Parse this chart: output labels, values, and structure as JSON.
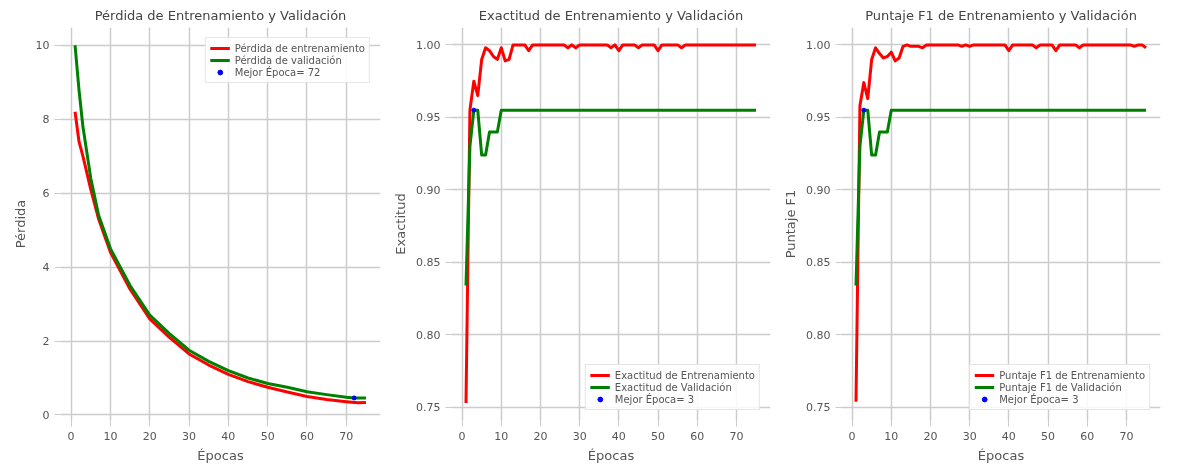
{
  "chart_data": [
    {
      "type": "line",
      "title": "Pérdida de Entrenamiento y Validación",
      "xlabel": "Épocas",
      "ylabel": "Pérdida",
      "xlim": [
        -2.7,
        78.7
      ],
      "ylim": [
        -0.15,
        10.48
      ],
      "xticks": [
        0,
        10,
        20,
        30,
        40,
        50,
        60,
        70
      ],
      "yticks": [
        0,
        2,
        4,
        6,
        8,
        10
      ],
      "grid": true,
      "legend": "top right",
      "line_style": "solid",
      "series": [
        {
          "name": "Pérdida de entrenamiento",
          "color": "#ff0000",
          "x": [
            1,
            2,
            3,
            5,
            7,
            10,
            15,
            20,
            25,
            30,
            35,
            40,
            45,
            50,
            55,
            60,
            65,
            70,
            73,
            75
          ],
          "values": [
            8.2,
            7.4,
            7.0,
            6.1,
            5.3,
            4.4,
            3.4,
            2.6,
            2.1,
            1.65,
            1.35,
            1.1,
            0.9,
            0.75,
            0.62,
            0.5,
            0.42,
            0.36,
            0.33,
            0.34
          ]
        },
        {
          "name": "Pérdida de validación",
          "color": "#008000",
          "x": [
            1,
            2,
            3,
            5,
            7,
            10,
            15,
            20,
            25,
            30,
            35,
            40,
            45,
            50,
            55,
            60,
            65,
            70,
            72,
            75
          ],
          "values": [
            10.0,
            8.8,
            7.8,
            6.4,
            5.4,
            4.5,
            3.5,
            2.7,
            2.2,
            1.75,
            1.45,
            1.2,
            1.0,
            0.85,
            0.75,
            0.63,
            0.55,
            0.48,
            0.46,
            0.46
          ]
        },
        {
          "name": "Mejor Época= 72",
          "type": "scatter",
          "marker": "circle",
          "color": "#0000ff",
          "x": [
            72
          ],
          "values": [
            0.46
          ]
        }
      ]
    },
    {
      "type": "line",
      "title": "Exactitud de Entrenamiento y Validación",
      "xlabel": "Épocas",
      "ylabel": "Exactitud",
      "xlim": [
        -2.7,
        78.7
      ],
      "ylim": [
        0.741,
        1.012
      ],
      "xticks": [
        0,
        10,
        20,
        30,
        40,
        50,
        60,
        70
      ],
      "yticks": [
        {
          "value": 0.75,
          "label": "0.75"
        },
        {
          "value": 0.8,
          "label": "0.80"
        },
        {
          "value": 0.85,
          "label": "0.85"
        },
        {
          "value": 0.9,
          "label": "0.90"
        },
        {
          "value": 0.95,
          "label": "0.95"
        },
        {
          "value": 1.0,
          "label": "1.00"
        }
      ],
      "grid": true,
      "legend": "bottom right",
      "line_style": "solid",
      "series": [
        {
          "name": "Exactitud de Entrenamiento",
          "color": "#ff0000",
          "x": [
            1,
            2,
            3,
            4,
            5,
            6,
            7,
            8,
            9,
            10,
            11,
            12,
            13,
            16,
            17,
            18,
            26,
            27,
            28,
            29,
            30,
            37,
            38,
            39,
            40,
            41,
            44,
            45,
            46,
            49,
            50,
            51,
            55,
            56,
            57,
            75
          ],
          "values": [
            0.753,
            0.955,
            0.975,
            0.965,
            0.99,
            0.998,
            0.996,
            0.992,
            0.99,
            0.998,
            0.989,
            0.99,
            1.0,
            1.0,
            0.996,
            1.0,
            1.0,
            0.998,
            1.0,
            0.998,
            1.0,
            1.0,
            0.998,
            1.0,
            0.996,
            1.0,
            1.0,
            0.998,
            1.0,
            1.0,
            0.996,
            1.0,
            1.0,
            0.998,
            1.0,
            1.0
          ]
        },
        {
          "name": "Exactitud de Validación",
          "color": "#008000",
          "x": [
            1,
            2,
            3,
            4,
            5,
            6,
            7,
            8,
            9,
            10,
            75
          ],
          "values": [
            0.834,
            0.93,
            0.955,
            0.955,
            0.924,
            0.924,
            0.94,
            0.94,
            0.94,
            0.955,
            0.955
          ]
        },
        {
          "name": "Mejor Época= 3",
          "type": "scatter",
          "marker": "circle",
          "color": "#0000ff",
          "x": [
            3
          ],
          "values": [
            0.955
          ]
        }
      ]
    },
    {
      "type": "line",
      "title": "Puntaje F1 de Entrenamiento y Validación",
      "xlabel": "Épocas",
      "ylabel": "Puntaje F1",
      "xlim": [
        -2.7,
        78.7
      ],
      "ylim": [
        0.741,
        1.012
      ],
      "xticks": [
        0,
        10,
        20,
        30,
        40,
        50,
        60,
        70
      ],
      "yticks": [
        {
          "value": 0.75,
          "label": "0.75"
        },
        {
          "value": 0.8,
          "label": "0.80"
        },
        {
          "value": 0.85,
          "label": "0.85"
        },
        {
          "value": 0.9,
          "label": "0.90"
        },
        {
          "value": 0.95,
          "label": "0.95"
        },
        {
          "value": 1.0,
          "label": "1.00"
        }
      ],
      "grid": true,
      "legend": "bottom right",
      "line_style": "solid",
      "series": [
        {
          "name": "Puntaje F1 de Entrenamiento",
          "color": "#ff0000",
          "x": [
            1,
            2,
            3,
            4,
            5,
            6,
            7,
            8,
            9,
            10,
            11,
            12,
            13,
            14,
            15,
            17,
            18,
            19,
            27,
            28,
            29,
            30,
            31,
            39,
            40,
            41,
            46,
            47,
            48,
            51,
            52,
            53,
            57,
            58,
            59,
            71,
            72,
            73,
            74,
            75
          ],
          "values": [
            0.754,
            0.958,
            0.974,
            0.963,
            0.99,
            0.998,
            0.994,
            0.991,
            0.992,
            0.995,
            0.989,
            0.991,
            0.999,
            1.0,
            0.999,
            0.999,
            0.998,
            1.0,
            1.0,
            0.999,
            1.0,
            0.999,
            1.0,
            1.0,
            0.996,
            1.0,
            1.0,
            0.998,
            1.0,
            1.0,
            0.996,
            1.0,
            1.0,
            0.998,
            1.0,
            1.0,
            0.999,
            1.0,
            1.0,
            0.998
          ]
        },
        {
          "name": "Puntaje F1 de Validación",
          "color": "#008000",
          "x": [
            1,
            2,
            3,
            4,
            5,
            6,
            7,
            8,
            9,
            10,
            75
          ],
          "values": [
            0.834,
            0.93,
            0.955,
            0.955,
            0.924,
            0.924,
            0.94,
            0.94,
            0.94,
            0.955,
            0.955
          ]
        },
        {
          "name": "Mejor Época= 3",
          "type": "scatter",
          "marker": "circle",
          "color": "#0000ff",
          "x": [
            3
          ],
          "values": [
            0.955
          ]
        }
      ]
    }
  ]
}
